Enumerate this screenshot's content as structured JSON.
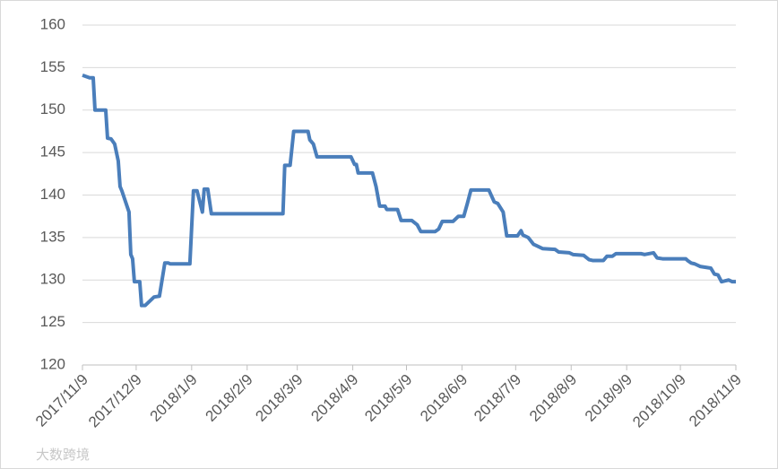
{
  "chart_data": {
    "type": "line",
    "x": [
      "2017/11/9",
      "2017/11/13",
      "2017/11/15",
      "2017/11/16",
      "2017/11/22",
      "2017/11/23",
      "2017/11/25",
      "2017/11/27",
      "2017/11/29",
      "2017/11/30",
      "2017/12/1",
      "2017/12/5",
      "2017/12/6",
      "2017/12/7",
      "2017/12/8",
      "2017/12/11",
      "2017/12/12",
      "2017/12/14",
      "2017/12/19",
      "2017/12/22",
      "2017/12/25",
      "2017/12/27",
      "2017/12/28",
      "2018/1/8",
      "2018/1/10",
      "2018/1/12",
      "2018/1/15",
      "2018/1/16",
      "2018/1/18",
      "2018/1/20",
      "2018/3/1",
      "2018/3/2",
      "2018/3/5",
      "2018/3/7",
      "2018/3/15",
      "2018/3/16",
      "2018/3/18",
      "2018/3/20",
      "2018/4/8",
      "2018/4/10",
      "2018/4/11",
      "2018/4/12",
      "2018/4/20",
      "2018/4/22",
      "2018/4/24",
      "2018/4/27",
      "2018/4/28",
      "2018/5/4",
      "2018/5/6",
      "2018/5/12",
      "2018/5/15",
      "2018/5/17",
      "2018/5/25",
      "2018/5/27",
      "2018/5/29",
      "2018/6/4",
      "2018/6/7",
      "2018/6/10",
      "2018/6/12",
      "2018/6/14",
      "2018/6/24",
      "2018/6/27",
      "2018/6/29",
      "2018/7/2",
      "2018/7/4",
      "2018/7/10",
      "2018/7/12",
      "2018/7/13",
      "2018/7/16",
      "2018/7/19",
      "2018/7/21",
      "2018/7/24",
      "2018/7/31",
      "2018/8/2",
      "2018/8/8",
      "2018/8/10",
      "2018/8/16",
      "2018/8/19",
      "2018/8/21",
      "2018/8/27",
      "2018/8/29",
      "2018/9/1",
      "2018/9/3",
      "2018/9/17",
      "2018/9/19",
      "2018/9/24",
      "2018/9/26",
      "2018/9/29",
      "2018/10/12",
      "2018/10/13",
      "2018/10/15",
      "2018/10/17",
      "2018/10/20",
      "2018/10/26",
      "2018/10/28",
      "2018/10/30",
      "2018/11/1",
      "2018/11/3",
      "2018/11/5",
      "2018/11/7",
      "2018/11/9"
    ],
    "series": [
      {
        "color": "#4a7ebb",
        "values": [
          154.1,
          153.8,
          153.8,
          150,
          150,
          146.7,
          146.6,
          146,
          144,
          141,
          140.5,
          138,
          133,
          132.5,
          129.8,
          129.8,
          127,
          127,
          128,
          128.1,
          132,
          132,
          131.9,
          131.9,
          140.5,
          140.5,
          138,
          140.7,
          140.7,
          137.8,
          137.8,
          143.5,
          143.5,
          147.5,
          147.5,
          146.5,
          146,
          144.5,
          144.5,
          143.6,
          143.6,
          142.6,
          142.6,
          141,
          138.7,
          138.7,
          138.3,
          138.3,
          137,
          137,
          136.5,
          135.7,
          135.7,
          136,
          136.9,
          136.9,
          137.5,
          137.5,
          139,
          140.6,
          140.6,
          139.2,
          139,
          138,
          135.2,
          135.2,
          135.8,
          135.3,
          135,
          134.2,
          134,
          133.7,
          133.6,
          133.3,
          133.2,
          133,
          132.9,
          132.4,
          132.3,
          132.3,
          132.8,
          132.8,
          133.1,
          133.1,
          133,
          133.2,
          132.6,
          132.5,
          132.5,
          132.3,
          132,
          131.9,
          131.6,
          131.4,
          130.7,
          130.6,
          129.8,
          129.9,
          130,
          129.8,
          129.8
        ]
      }
    ],
    "xlim": [
      "2017/11/9",
      "2018/11/9"
    ],
    "xticks": [
      "2017/11/9",
      "2017/12/9",
      "2018/1/9",
      "2018/2/9",
      "2018/3/9",
      "2018/4/9",
      "2018/5/9",
      "2018/6/9",
      "2018/7/9",
      "2018/8/9",
      "2018/9/9",
      "2018/10/9",
      "2018/11/9"
    ],
    "ylim": [
      120,
      160
    ],
    "yticks": [
      120,
      125,
      130,
      135,
      140,
      145,
      150,
      155,
      160
    ],
    "grid": true,
    "watermark": "大数跨境"
  }
}
